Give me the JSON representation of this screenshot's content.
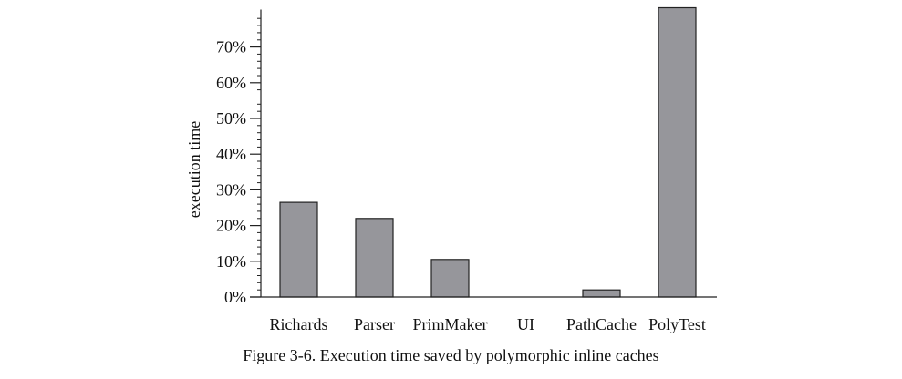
{
  "caption": "Figure 3-6.  Execution time saved by polymorphic inline caches",
  "colors": {
    "bar_fill": "#96969b",
    "bar_stroke": "#222222",
    "axis": "#222222"
  },
  "chart_data": {
    "type": "bar",
    "title": "",
    "xlabel": "",
    "ylabel": "execution time",
    "categories": [
      "Richards",
      "Parser",
      "PrimMaker",
      "UI",
      "PathCache",
      "PolyTest"
    ],
    "values": [
      26.5,
      22,
      10.5,
      0,
      2,
      81
    ],
    "ylim": [
      0,
      81
    ],
    "yticks": [
      0,
      10,
      20,
      30,
      40,
      50,
      60,
      70
    ],
    "ytick_labels": [
      "0%",
      "10%",
      "20%",
      "30%",
      "40%",
      "50%",
      "60%",
      "70%"
    ],
    "minor_tick_step": 2,
    "grid": false,
    "legend": "none"
  }
}
